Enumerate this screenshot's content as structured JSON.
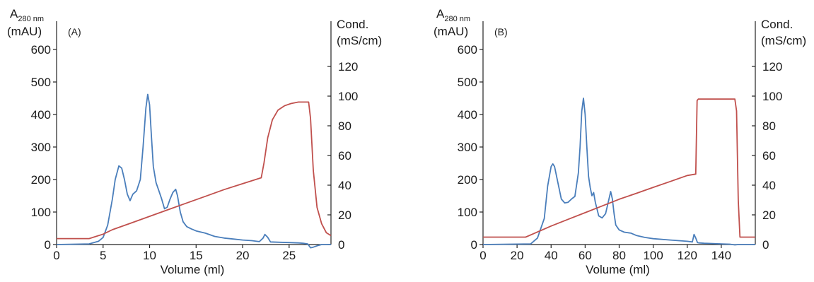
{
  "chart_data": [
    {
      "type": "line",
      "panel_label": "(A)",
      "xlabel": "Volume (ml)",
      "y_left_label_main": "A",
      "y_left_label_sub": "280 nm",
      "y_left_label_unit": "(mAU)",
      "y_right_label_main": "Cond.",
      "y_right_label_unit": "(mS/cm)",
      "xlim": [
        0,
        29.5
      ],
      "ylim_left": [
        0,
        650
      ],
      "ylim_right": [
        0,
        130
      ],
      "x_ticks": [
        0,
        5,
        10,
        15,
        20,
        25
      ],
      "y_left_ticks": [
        0,
        100,
        200,
        300,
        400,
        500,
        600
      ],
      "y_right_ticks": [
        0,
        20,
        40,
        60,
        80,
        100,
        120
      ],
      "colors": {
        "absorbance": "#4a7ebb",
        "conductivity": "#c0504d"
      },
      "series": [
        {
          "key": "absorbance",
          "axis": "left",
          "x": [
            0,
            3.5,
            4.5,
            5,
            5.5,
            6,
            6.3,
            6.7,
            7,
            7.3,
            7.6,
            7.9,
            8.2,
            8.6,
            9,
            9.3,
            9.6,
            9.8,
            10,
            10.2,
            10.4,
            10.7,
            11,
            11.3,
            11.6,
            11.9,
            12.2,
            12.5,
            12.8,
            13,
            13.3,
            13.6,
            14,
            14.5,
            15,
            16,
            17,
            18,
            19,
            20,
            21,
            21.8,
            22.2,
            22.4,
            22.7,
            23,
            24,
            25,
            26,
            26.5,
            27,
            27.3,
            27.6,
            28,
            28.5,
            29.5
          ],
          "y": [
            0,
            2,
            10,
            22,
            60,
            140,
            200,
            242,
            235,
            200,
            155,
            135,
            155,
            165,
            200,
            300,
            420,
            462,
            430,
            330,
            240,
            190,
            165,
            140,
            110,
            115,
            140,
            160,
            170,
            150,
            100,
            70,
            55,
            48,
            42,
            35,
            25,
            20,
            17,
            14,
            12,
            9,
            20,
            31,
            22,
            8,
            7,
            6,
            5,
            4,
            2,
            -10,
            -8,
            -4,
            0,
            0
          ]
        },
        {
          "key": "conductivity",
          "axis": "right",
          "x": [
            0,
            3.5,
            4,
            5,
            6,
            8,
            10,
            12,
            14,
            16,
            18,
            20,
            22,
            22.3,
            22.7,
            23.2,
            23.8,
            24.5,
            25.2,
            26,
            26.8,
            27.1,
            27.3,
            27.6,
            28,
            28.5,
            29,
            29.5
          ],
          "y": [
            4,
            4,
            5,
            7,
            10,
            14.5,
            19,
            23.5,
            28,
            32.5,
            37,
            41,
            45,
            55,
            72,
            84,
            90.5,
            93.5,
            95,
            96,
            96,
            96,
            85,
            50,
            25,
            14,
            8,
            6
          ]
        }
      ]
    },
    {
      "type": "line",
      "panel_label": "(B)",
      "xlabel": "Volume (ml)",
      "y_left_label_main": "A",
      "y_left_label_sub": "280 nm",
      "y_left_label_unit": "(mAU)",
      "y_right_label_main": "Cond.",
      "y_right_label_unit": "(mS/cm)",
      "xlim": [
        0,
        160
      ],
      "ylim_left": [
        0,
        650
      ],
      "ylim_right": [
        0,
        130
      ],
      "x_ticks": [
        0,
        20,
        40,
        60,
        80,
        100,
        120,
        140
      ],
      "y_left_ticks": [
        0,
        100,
        200,
        300,
        400,
        500,
        600
      ],
      "y_right_ticks": [
        0,
        20,
        40,
        60,
        80,
        100,
        120
      ],
      "colors": {
        "absorbance": "#4a7ebb",
        "conductivity": "#c0504d"
      },
      "series": [
        {
          "key": "absorbance",
          "axis": "left",
          "x": [
            0,
            28,
            32,
            36,
            38,
            40,
            41,
            42,
            44,
            46,
            48,
            50,
            52,
            54,
            56,
            57,
            58,
            59,
            60,
            61,
            62,
            63,
            64,
            65,
            66,
            68,
            70,
            72,
            74,
            75,
            76,
            77,
            78,
            80,
            83,
            87,
            90,
            95,
            100,
            110,
            120,
            123,
            124,
            125,
            126,
            127,
            130,
            135,
            140,
            145,
            148,
            150,
            155,
            160
          ],
          "y": [
            0,
            2,
            20,
            80,
            180,
            240,
            248,
            240,
            190,
            140,
            128,
            130,
            140,
            148,
            220,
            300,
            410,
            450,
            400,
            300,
            210,
            175,
            150,
            160,
            130,
            88,
            82,
            95,
            140,
            163,
            140,
            95,
            60,
            45,
            38,
            35,
            28,
            22,
            18,
            14,
            10,
            8,
            31,
            20,
            6,
            5,
            4,
            3,
            2,
            1,
            -1,
            0,
            0,
            0
          ]
        },
        {
          "key": "conductivity",
          "axis": "right",
          "x": [
            0,
            10,
            20,
            25,
            30,
            40,
            50,
            60,
            70,
            80,
            90,
            100,
            110,
            120,
            125,
            125.8,
            126.5,
            130,
            140,
            148,
            149,
            150,
            151,
            152,
            160
          ],
          "y": [
            5,
            5,
            5,
            5,
            7.5,
            12.5,
            17,
            21.5,
            26,
            30.5,
            34.5,
            38.5,
            42.5,
            46.5,
            47.5,
            97,
            98,
            98,
            98,
            98,
            90,
            30,
            5,
            5,
            5
          ]
        }
      ]
    }
  ]
}
